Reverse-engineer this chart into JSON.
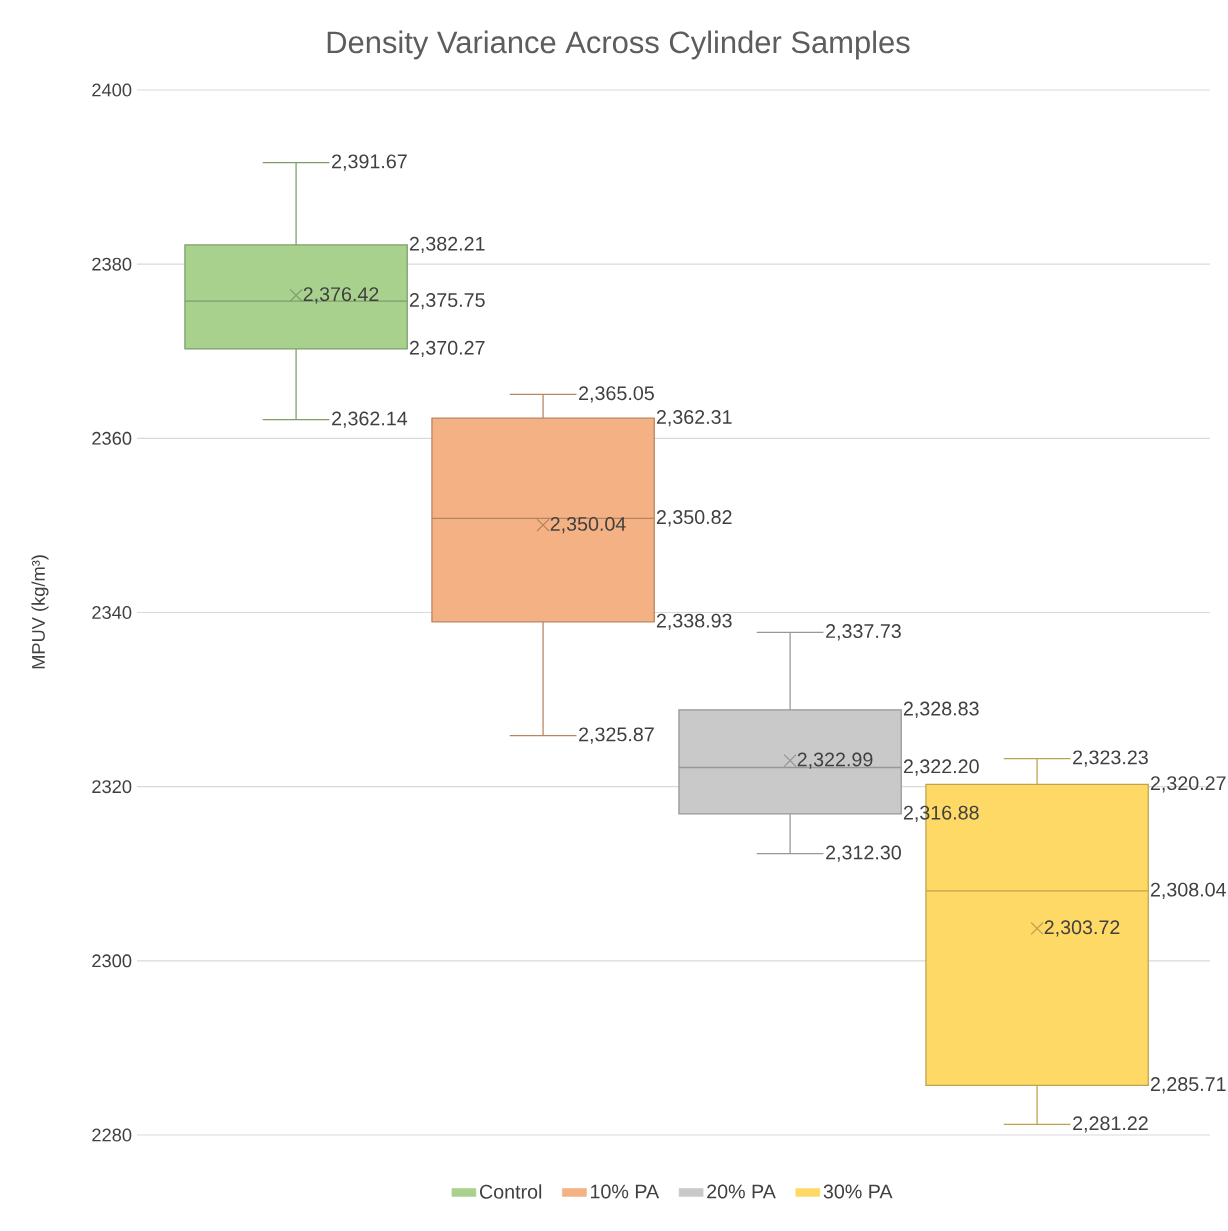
{
  "chart_data": {
    "type": "box",
    "title": "Density Variance Across Cylinder Samples",
    "ylabel": "MPUV (kg/m³)",
    "categories": [
      null
    ],
    "series": [
      {
        "name": "Control",
        "color": "#a9d18e",
        "boxes": [
          {
            "low": 2362.14,
            "q1": 2370.27,
            "median": 2375.75,
            "q3": 2382.21,
            "high": 2391.67,
            "mean": 2376.42
          }
        ]
      },
      {
        "name": "10% PA",
        "color": "#f4b183",
        "boxes": [
          {
            "low": 2325.87,
            "q1": 2338.93,
            "median": 2350.82,
            "q3": 2362.31,
            "high": 2365.05,
            "mean": 2350.04
          }
        ]
      },
      {
        "name": "20% PA",
        "color": "#c9c9c9",
        "boxes": [
          {
            "low": 2312.3,
            "q1": 2316.88,
            "median": 2322.2,
            "q3": 2328.83,
            "high": 2337.73,
            "mean": 2322.99
          }
        ]
      },
      {
        "name": "30% PA",
        "color": "#ffd966",
        "boxes": [
          {
            "low": 2281.22,
            "q1": 2285.71,
            "median": 2308.04,
            "q3": 2320.27,
            "high": 2323.23,
            "mean": 2303.72
          }
        ]
      }
    ],
    "annotations": [
      "2,391.67",
      "2,382.21",
      "2,375.75",
      "2,370.27",
      "2,362.14",
      "2,376.42",
      "2,365.05",
      "2,362.31",
      "2,350.82",
      "2,338.93",
      "2,325.87",
      "2,350.04",
      "2,337.73",
      "2,328.83",
      "2,322.20",
      "2,316.88",
      "2,312.30",
      "2,322.99",
      "2,323.23",
      "2,320.27",
      "2,308.04",
      "2,285.71",
      "2,281.22",
      "2,303.72"
    ],
    "ylim": [
      2280,
      2400
    ],
    "yticks": [
      2280,
      2300,
      2320,
      2340,
      2360,
      2380,
      2400
    ],
    "grid": "y",
    "legend": "bottom",
    "tick_labels": "y"
  }
}
